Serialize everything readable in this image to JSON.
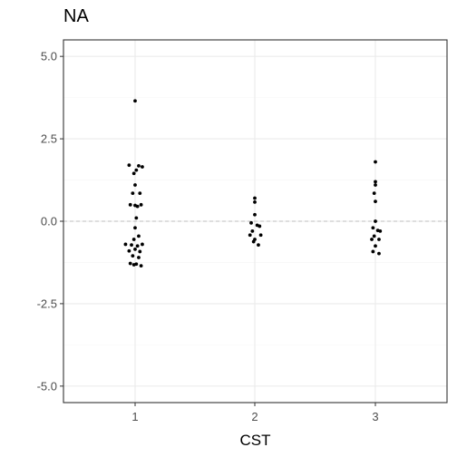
{
  "chart_data": {
    "type": "scatter",
    "title": "NA",
    "xlabel": "CST",
    "ylabel": "",
    "categories": [
      "1",
      "2",
      "3"
    ],
    "ylim": [
      -5.5,
      5.5
    ],
    "yticks": [
      5.0,
      2.5,
      0.0,
      -2.5,
      -5.0
    ],
    "ytick_labels": [
      "5.0",
      "2.5",
      "0.0",
      "-2.5",
      "-5.0"
    ],
    "grid": true,
    "reference_line": {
      "y": 0,
      "style": "dashed",
      "color": "#bdbdbd"
    },
    "colors": {
      "points": "#000000",
      "grid_major": "#ebebeb",
      "grid_minor": "#f5f5f5",
      "panel_border": "#333333"
    },
    "series": [
      {
        "category": "1",
        "points": [
          {
            "jitter": 0.0,
            "y": 3.65
          },
          {
            "jitter": -0.05,
            "y": 1.7
          },
          {
            "jitter": 0.03,
            "y": 1.68
          },
          {
            "jitter": 0.06,
            "y": 1.65
          },
          {
            "jitter": 0.01,
            "y": 1.55
          },
          {
            "jitter": -0.01,
            "y": 1.45
          },
          {
            "jitter": 0.0,
            "y": 1.1
          },
          {
            "jitter": -0.02,
            "y": 0.85
          },
          {
            "jitter": 0.04,
            "y": 0.85
          },
          {
            "jitter": -0.04,
            "y": 0.5
          },
          {
            "jitter": 0.0,
            "y": 0.48
          },
          {
            "jitter": 0.02,
            "y": 0.45
          },
          {
            "jitter": 0.05,
            "y": 0.5
          },
          {
            "jitter": 0.01,
            "y": 0.1
          },
          {
            "jitter": 0.0,
            "y": -0.2
          },
          {
            "jitter": 0.03,
            "y": -0.45
          },
          {
            "jitter": -0.01,
            "y": -0.55
          },
          {
            "jitter": -0.08,
            "y": -0.7
          },
          {
            "jitter": -0.03,
            "y": -0.72
          },
          {
            "jitter": 0.02,
            "y": -0.75
          },
          {
            "jitter": 0.06,
            "y": -0.7
          },
          {
            "jitter": 0.0,
            "y": -0.85
          },
          {
            "jitter": -0.05,
            "y": -0.9
          },
          {
            "jitter": 0.04,
            "y": -0.92
          },
          {
            "jitter": -0.02,
            "y": -1.05
          },
          {
            "jitter": 0.03,
            "y": -1.1
          },
          {
            "jitter": -0.04,
            "y": -1.28
          },
          {
            "jitter": 0.01,
            "y": -1.3
          },
          {
            "jitter": 0.05,
            "y": -1.35
          },
          {
            "jitter": -0.01,
            "y": -1.32
          }
        ]
      },
      {
        "category": "2",
        "points": [
          {
            "jitter": 0.0,
            "y": 0.7
          },
          {
            "jitter": 0.0,
            "y": 0.58
          },
          {
            "jitter": 0.0,
            "y": 0.2
          },
          {
            "jitter": -0.03,
            "y": -0.05
          },
          {
            "jitter": 0.02,
            "y": -0.12
          },
          {
            "jitter": 0.04,
            "y": -0.15
          },
          {
            "jitter": -0.02,
            "y": -0.3
          },
          {
            "jitter": -0.04,
            "y": -0.42
          },
          {
            "jitter": 0.05,
            "y": -0.42
          },
          {
            "jitter": 0.0,
            "y": -0.55
          },
          {
            "jitter": -0.01,
            "y": -0.62
          },
          {
            "jitter": 0.03,
            "y": -0.72
          }
        ]
      },
      {
        "category": "3",
        "points": [
          {
            "jitter": 0.0,
            "y": 1.8
          },
          {
            "jitter": 0.0,
            "y": 1.2
          },
          {
            "jitter": 0.0,
            "y": 1.1
          },
          {
            "jitter": -0.01,
            "y": 0.85
          },
          {
            "jitter": 0.0,
            "y": 0.6
          },
          {
            "jitter": 0.0,
            "y": 0.0
          },
          {
            "jitter": -0.02,
            "y": -0.2
          },
          {
            "jitter": 0.02,
            "y": -0.28
          },
          {
            "jitter": 0.04,
            "y": -0.3
          },
          {
            "jitter": -0.01,
            "y": -0.45
          },
          {
            "jitter": -0.03,
            "y": -0.55
          },
          {
            "jitter": 0.03,
            "y": -0.55
          },
          {
            "jitter": 0.0,
            "y": -0.75
          },
          {
            "jitter": -0.02,
            "y": -0.92
          },
          {
            "jitter": 0.03,
            "y": -0.98
          }
        ]
      }
    ]
  }
}
